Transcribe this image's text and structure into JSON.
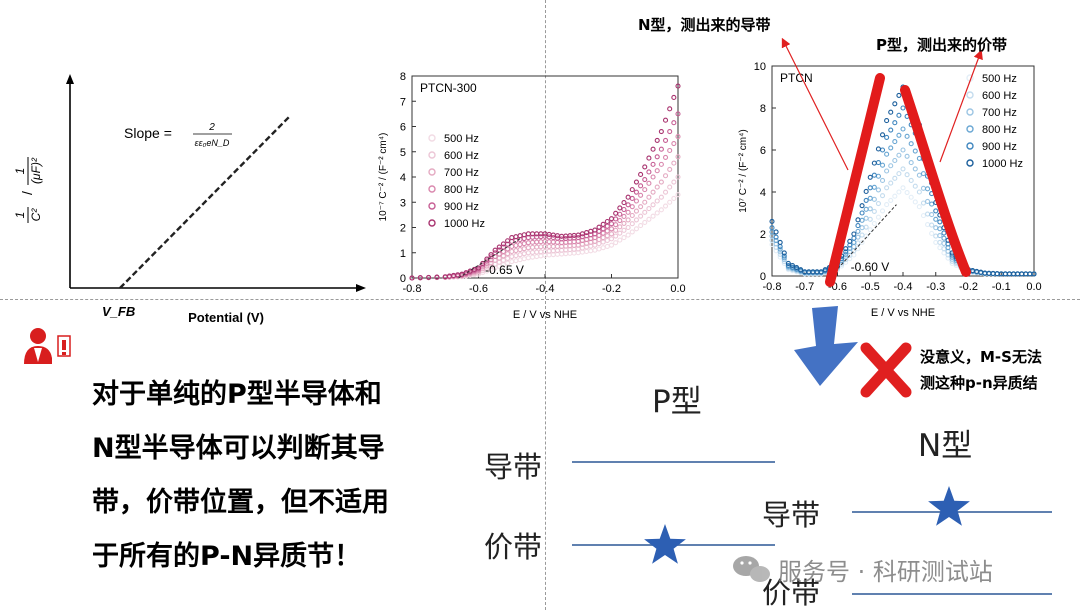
{
  "panel_ms": {
    "y_label_num": "1",
    "y_label_c": "C²",
    "y_label_unit_num": "1",
    "y_label_unit_den": "(μF)²",
    "slope_label": "Slope =",
    "slope_num": "2",
    "slope_den": "εε₀eN_D",
    "x_label": "Potential (V)",
    "vfb_label": "V_FB"
  },
  "panel_ptcn300": {
    "name": "PTCN-300",
    "ylabel": "10⁻⁷ C⁻² / (F⁻² cm⁴)",
    "xlabel": "E / V vs NHE",
    "annotation": "-0.65 V"
  },
  "panel_ptcn": {
    "name": "PTCN",
    "ylabel": "10⁷ C⁻² / (F⁻² cm⁴)",
    "xlabel": "E / V vs NHE",
    "annotation": "-0.60 V"
  },
  "annotations": {
    "n_type": "N型，测出来的导带",
    "p_type": "P型，测出来的价带",
    "no_meaning_1": "没意义，M-S无法",
    "no_meaning_2": "测这种p-n异质结"
  },
  "main_text": {
    "line1": "对于单纯的P型半导体和",
    "line2": "N型半导体可以判断其导",
    "line3": "带，价带位置，但不适用",
    "line4": "于所有的P-N异质节！"
  },
  "bands": {
    "p_title": "P型",
    "n_title": "N型",
    "p_cb": "导带",
    "p_vb": "价带",
    "n_cb": "导带",
    "n_vb": "价带"
  },
  "watermark": "服务号 · 科研测试站",
  "chart_data": [
    {
      "type": "scatter",
      "title": "PTCN-300",
      "xlabel": "E / V vs NHE",
      "ylabel": "10⁻⁷ C⁻² / (F⁻² cm⁴)",
      "xlim": [
        -0.8,
        0.0
      ],
      "ylim": [
        0,
        8
      ],
      "xticks": [
        "-0.8",
        "-0.6",
        "-0.4",
        "-0.2",
        "0.0"
      ],
      "yticks": [
        "0",
        "1",
        "2",
        "3",
        "4",
        "5",
        "6",
        "7",
        "8"
      ],
      "legend_position": "left",
      "series": [
        {
          "name": "500 Hz",
          "color": "#f2dbe4",
          "x": [
            -0.8,
            -0.7,
            -0.65,
            -0.6,
            -0.55,
            -0.5,
            -0.45,
            -0.4,
            -0.35,
            -0.3,
            -0.25,
            -0.2,
            -0.15,
            -0.1,
            -0.05,
            0.0
          ],
          "y": [
            0.0,
            0.02,
            0.05,
            0.15,
            0.4,
            0.65,
            0.8,
            0.9,
            0.95,
            1.0,
            1.1,
            1.3,
            1.7,
            2.2,
            2.7,
            3.3
          ]
        },
        {
          "name": "600 Hz",
          "color": "#ecc6d6",
          "x": [
            -0.8,
            -0.7,
            -0.65,
            -0.6,
            -0.55,
            -0.5,
            -0.45,
            -0.4,
            -0.35,
            -0.3,
            -0.25,
            -0.2,
            -0.15,
            -0.1,
            -0.05,
            0.0
          ],
          "y": [
            0.0,
            0.02,
            0.06,
            0.2,
            0.55,
            0.85,
            1.0,
            1.05,
            1.1,
            1.15,
            1.3,
            1.55,
            2.0,
            2.6,
            3.2,
            4.0
          ]
        },
        {
          "name": "700 Hz",
          "color": "#e4aac2",
          "x": [
            -0.8,
            -0.7,
            -0.65,
            -0.6,
            -0.55,
            -0.5,
            -0.45,
            -0.4,
            -0.35,
            -0.3,
            -0.25,
            -0.2,
            -0.15,
            -0.1,
            -0.05,
            0.0
          ],
          "y": [
            0.0,
            0.03,
            0.08,
            0.25,
            0.7,
            1.05,
            1.2,
            1.25,
            1.25,
            1.3,
            1.45,
            1.75,
            2.3,
            3.0,
            3.8,
            4.8
          ]
        },
        {
          "name": "800 Hz",
          "color": "#d987ad",
          "x": [
            -0.8,
            -0.7,
            -0.65,
            -0.6,
            -0.55,
            -0.5,
            -0.45,
            -0.4,
            -0.35,
            -0.3,
            -0.25,
            -0.2,
            -0.15,
            -0.1,
            -0.05,
            0.0
          ],
          "y": [
            0.0,
            0.03,
            0.1,
            0.3,
            0.85,
            1.25,
            1.4,
            1.45,
            1.4,
            1.45,
            1.6,
            1.95,
            2.6,
            3.5,
            4.5,
            5.6
          ]
        },
        {
          "name": "900 Hz",
          "color": "#c65e94",
          "x": [
            -0.8,
            -0.7,
            -0.65,
            -0.6,
            -0.55,
            -0.5,
            -0.45,
            -0.4,
            -0.35,
            -0.3,
            -0.25,
            -0.2,
            -0.15,
            -0.1,
            -0.05,
            0.0
          ],
          "y": [
            0.0,
            0.04,
            0.12,
            0.35,
            1.0,
            1.45,
            1.6,
            1.65,
            1.55,
            1.6,
            1.75,
            2.15,
            2.9,
            3.9,
            5.1,
            6.5
          ]
        },
        {
          "name": "1000 Hz",
          "color": "#a8336f",
          "x": [
            -0.8,
            -0.7,
            -0.65,
            -0.6,
            -0.55,
            -0.5,
            -0.45,
            -0.4,
            -0.35,
            -0.3,
            -0.25,
            -0.2,
            -0.15,
            -0.1,
            -0.05,
            0.0
          ],
          "y": [
            0.0,
            0.05,
            0.15,
            0.4,
            1.1,
            1.6,
            1.75,
            1.75,
            1.65,
            1.7,
            1.9,
            2.35,
            3.2,
            4.4,
            5.8,
            7.6
          ]
        }
      ]
    },
    {
      "type": "scatter",
      "title": "PTCN",
      "xlabel": "E / V vs NHE",
      "ylabel": "10⁷ C⁻² / (F⁻² cm⁴)",
      "xlim": [
        -0.8,
        0.0
      ],
      "ylim": [
        0,
        10
      ],
      "xticks": [
        "-0.8",
        "-0.7",
        "-0.6",
        "-0.5",
        "-0.4",
        "-0.3",
        "-0.2",
        "-0.1",
        "0.0"
      ],
      "yticks": [
        "0",
        "2",
        "4",
        "6",
        "8",
        "10"
      ],
      "legend_position": "right",
      "series": [
        {
          "name": "500 Hz",
          "color": "#e3eef7",
          "x": [
            -0.8,
            -0.75,
            -0.7,
            -0.65,
            -0.6,
            -0.55,
            -0.5,
            -0.45,
            -0.4,
            -0.35,
            -0.3,
            -0.25,
            -0.2,
            -0.15,
            -0.1,
            -0.05,
            0.0
          ],
          "y": [
            1.5,
            0.3,
            0.1,
            0.1,
            0.3,
            1.0,
            2.2,
            3.4,
            4.2,
            3.3,
            1.6,
            0.6,
            0.2,
            0.1,
            0.1,
            0.1,
            0.1
          ]
        },
        {
          "name": "600 Hz",
          "color": "#c4dcee",
          "x": [
            -0.8,
            -0.75,
            -0.7,
            -0.65,
            -0.6,
            -0.55,
            -0.5,
            -0.45,
            -0.4,
            -0.35,
            -0.3,
            -0.25,
            -0.2,
            -0.15,
            -0.1,
            -0.05,
            0.0
          ],
          "y": [
            1.7,
            0.35,
            0.12,
            0.12,
            0.35,
            1.2,
            2.7,
            4.2,
            5.1,
            4.0,
            1.9,
            0.7,
            0.22,
            0.1,
            0.1,
            0.1,
            0.1
          ]
        },
        {
          "name": "700 Hz",
          "color": "#9cc5e3",
          "x": [
            -0.8,
            -0.75,
            -0.7,
            -0.65,
            -0.6,
            -0.55,
            -0.5,
            -0.45,
            -0.4,
            -0.35,
            -0.3,
            -0.25,
            -0.2,
            -0.15,
            -0.1,
            -0.05,
            0.0
          ],
          "y": [
            1.9,
            0.4,
            0.14,
            0.14,
            0.4,
            1.4,
            3.2,
            5.0,
            6.0,
            4.8,
            2.3,
            0.8,
            0.24,
            0.12,
            0.1,
            0.1,
            0.1
          ]
        },
        {
          "name": "800 Hz",
          "color": "#6aa7d3",
          "x": [
            -0.8,
            -0.75,
            -0.7,
            -0.65,
            -0.6,
            -0.55,
            -0.5,
            -0.45,
            -0.4,
            -0.35,
            -0.3,
            -0.25,
            -0.2,
            -0.15,
            -0.1,
            -0.05,
            0.0
          ],
          "y": [
            2.1,
            0.45,
            0.16,
            0.16,
            0.45,
            1.6,
            3.7,
            5.8,
            7.0,
            5.6,
            2.7,
            0.9,
            0.26,
            0.12,
            0.1,
            0.1,
            0.1
          ]
        },
        {
          "name": "900 Hz",
          "color": "#3f86bf",
          "x": [
            -0.8,
            -0.75,
            -0.7,
            -0.65,
            -0.6,
            -0.55,
            -0.5,
            -0.45,
            -0.4,
            -0.35,
            -0.3,
            -0.25,
            -0.2,
            -0.15,
            -0.1,
            -0.05,
            0.0
          ],
          "y": [
            2.3,
            0.5,
            0.18,
            0.18,
            0.5,
            1.8,
            4.2,
            6.6,
            8.0,
            6.4,
            3.1,
            1.0,
            0.28,
            0.13,
            0.1,
            0.1,
            0.1
          ]
        },
        {
          "name": "1000 Hz",
          "color": "#1c5f9c",
          "x": [
            -0.8,
            -0.75,
            -0.7,
            -0.65,
            -0.6,
            -0.55,
            -0.5,
            -0.45,
            -0.4,
            -0.35,
            -0.3,
            -0.25,
            -0.2,
            -0.15,
            -0.1,
            -0.05,
            0.0
          ],
          "y": [
            2.6,
            0.6,
            0.2,
            0.2,
            0.6,
            2.0,
            4.7,
            7.4,
            9.0,
            7.2,
            3.5,
            1.1,
            0.3,
            0.14,
            0.1,
            0.1,
            0.1
          ]
        }
      ]
    }
  ]
}
